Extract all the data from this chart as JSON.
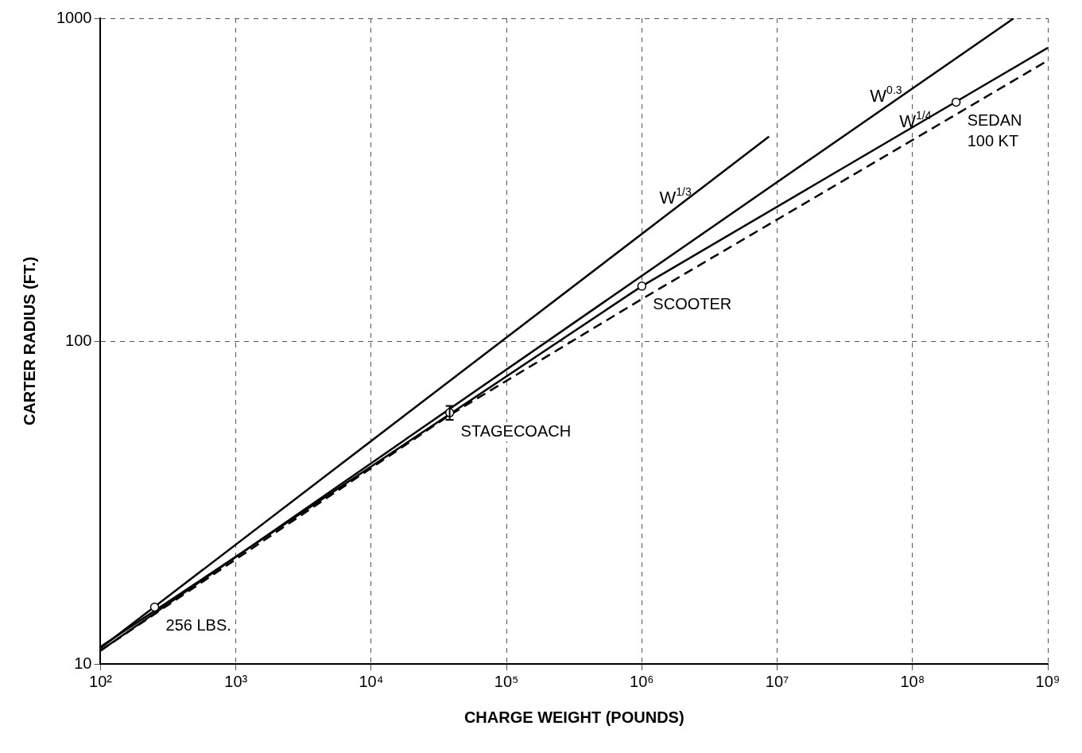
{
  "chart_data": {
    "type": "line",
    "xlabel": "CHARGE WEIGHT (POUNDS)",
    "ylabel": "CARTER RADIUS (FT.)",
    "log": "xy",
    "grid": true,
    "legend": false,
    "xlim": [
      100,
      1000000000
    ],
    "ylim": [
      10,
      1000
    ],
    "xticks": [
      {
        "value": 100,
        "label": "10²"
      },
      {
        "value": 1000,
        "label": "10³"
      },
      {
        "value": 10000,
        "label": "10⁴"
      },
      {
        "value": 100000,
        "label": "10⁵"
      },
      {
        "value": 1000000,
        "label": "10⁶"
      },
      {
        "value": 10000000,
        "label": "10⁷"
      },
      {
        "value": 100000000,
        "label": "10⁸"
      },
      {
        "value": 1000000000,
        "label": "10⁹"
      }
    ],
    "yticks": [
      10,
      100,
      1000
    ],
    "series": [
      {
        "name": "W$^{1/3}$",
        "color": "#000000",
        "x": [
          100,
          8700000
        ],
        "values": [
          11.2,
          430
        ],
        "line_style": "solid"
      },
      {
        "name": "W$^{0.3}$",
        "color": "#000000",
        "x": [
          100,
          560000000
        ],
        "values": [
          11,
          1000
        ],
        "line_style": "solid"
      },
      {
        "name": "W$^{1/4}$",
        "color": "#000000",
        "x": [
          100,
          1000000,
          1000000000
        ],
        "values": [
          11.3,
          148,
          810
        ],
        "line_style": "solid"
      },
      {
        "color": "#000000",
        "x": [
          100,
          38000,
          1000000,
          1000000000
        ],
        "values": [
          11,
          59,
          135,
          740
        ],
        "line_style": "dashed"
      },
      {
        "type": "scatter",
        "color": "#000000",
        "marker": "circle",
        "x": [
          251,
          1000000,
          38000,
          210000000
        ],
        "values": [
          15,
          148,
          60,
          550
        ],
        "errors": [
          null,
          null,
          [
            57,
            63
          ],
          null
        ]
      }
    ],
    "annotations": [
      {
        "text": "256 LBS.",
        "x": 251,
        "y": 15
      },
      {
        "text": "SCOOTER",
        "x": 1000000,
        "y": 148
      },
      {
        "text": "STAGECOACH",
        "x": 38000,
        "y": 60
      },
      {
        "text": "SEDAN 100 KT",
        "x": 210000000,
        "y": 550
      }
    ]
  }
}
